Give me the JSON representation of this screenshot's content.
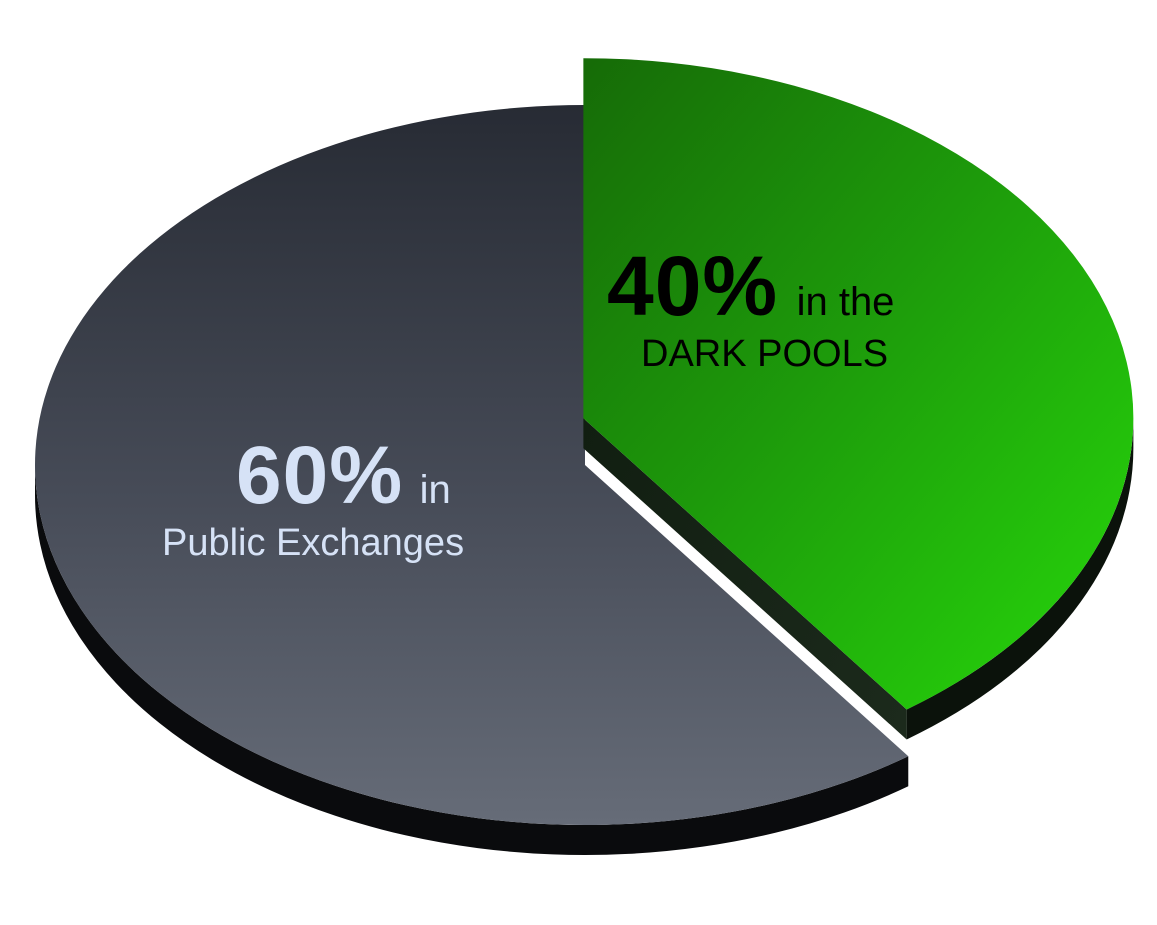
{
  "chart_data": {
    "type": "pie",
    "title": "",
    "slices": [
      {
        "value": 60,
        "percent_label": "60%",
        "label_suffix": "in",
        "label_line2": "Public Exchanges",
        "color": "#4b505c",
        "text_color": "#d6e2f6",
        "exploded": false
      },
      {
        "value": 40,
        "percent_label": "40%",
        "label_suffix": "in the",
        "label_line2": "DARK POOLS",
        "color": "#1ec10a",
        "text_color": "#000000",
        "exploded": true
      }
    ],
    "style": "3d-tilted",
    "legend": "none"
  }
}
